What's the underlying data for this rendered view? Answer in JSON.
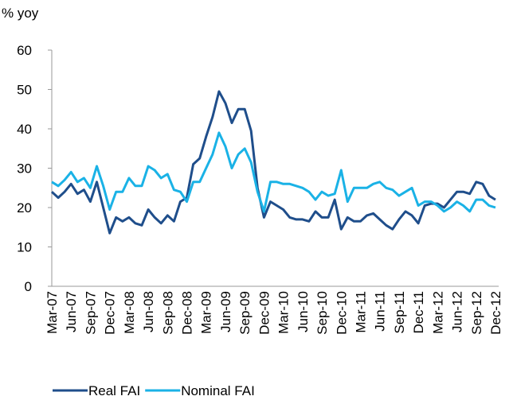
{
  "chart_data": {
    "type": "line",
    "y_label": "% yoy",
    "categories": [
      "Mar-07",
      null,
      null,
      "Jun-07",
      null,
      null,
      "Sep-07",
      null,
      null,
      "Dec-07",
      null,
      null,
      "Mar-08",
      null,
      null,
      "Jun-08",
      null,
      null,
      "Sep-08",
      null,
      null,
      "Dec-08",
      null,
      null,
      "Mar-09",
      null,
      null,
      "Jun-09",
      null,
      null,
      "Sep-09",
      null,
      null,
      "Dec-09",
      null,
      null,
      "Mar-10",
      null,
      null,
      "Jun-10",
      null,
      null,
      "Sep-10",
      null,
      null,
      "Dec-10",
      null,
      null,
      "Mar-11",
      null,
      null,
      "Jun-11",
      null,
      null,
      "Sep-11",
      null,
      null,
      "Dec-11",
      null,
      null,
      "Mar-12",
      null,
      null,
      "Jun-12",
      null,
      null,
      "Sep-12",
      null,
      null,
      "Dec-12"
    ],
    "series": [
      {
        "name": "Real FAI",
        "color": "#1f4e8b",
        "values": [
          24,
          22.5,
          24,
          26,
          23.5,
          24.5,
          21.5,
          26.5,
          20,
          13.5,
          17.5,
          16.5,
          17.5,
          16,
          15.5,
          19.5,
          17.5,
          16,
          18,
          16.5,
          21.5,
          22.5,
          31,
          32.5,
          38,
          43,
          49.5,
          46.5,
          41.5,
          45,
          45,
          39.5,
          25,
          17.5,
          21.5,
          20.5,
          19.5,
          17.5,
          17,
          17,
          16.5,
          19,
          17.5,
          17.5,
          22,
          14.5,
          17.5,
          16.5,
          16.5,
          18,
          18.5,
          17,
          15.5,
          14.5,
          17,
          19,
          18,
          16,
          20.5,
          21,
          21,
          20,
          22,
          24,
          24,
          23.5,
          26.5,
          26,
          23,
          22
        ]
      },
      {
        "name": "Nominal FAI",
        "color": "#1ab2e6",
        "values": [
          26.5,
          25.5,
          27,
          29,
          26.5,
          27.5,
          25,
          30.5,
          25.5,
          19.5,
          24,
          24,
          27.5,
          25.5,
          25.5,
          30.5,
          29.5,
          27.5,
          28.5,
          24.5,
          24,
          21.5,
          26.5,
          26.5,
          30,
          33.5,
          39,
          35.5,
          30,
          33.5,
          35,
          31.5,
          24,
          19,
          26.5,
          26.5,
          26,
          26,
          25.5,
          25,
          24,
          22,
          24,
          23,
          23.5,
          29.5,
          21.5,
          25,
          25,
          25,
          26,
          26.5,
          25,
          24.5,
          23,
          24,
          25,
          20.5,
          21.5,
          21.5,
          20.5,
          19,
          20,
          21.5,
          20.5,
          19,
          22,
          22,
          20.5,
          20
        ]
      }
    ],
    "ylim": [
      0,
      60
    ],
    "yticks": [
      0,
      10,
      20,
      30,
      40,
      50,
      60
    ],
    "legend": "bottom-left"
  }
}
